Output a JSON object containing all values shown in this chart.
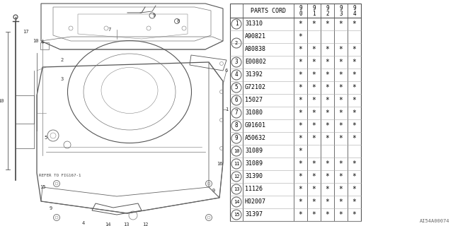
{
  "bg_color": "#ffffff",
  "col_headers": [
    "9\n0",
    "9\n1",
    "9\n2",
    "9\n3",
    "9\n4"
  ],
  "header_label": "PARTS CORD",
  "rows": [
    {
      "num": "1",
      "code": "31310",
      "stars": [
        true,
        true,
        true,
        true,
        true
      ],
      "merged": false
    },
    {
      "num": "2",
      "code": "A90821",
      "stars": [
        true,
        false,
        false,
        false,
        false
      ],
      "merged": true,
      "merge_start": true
    },
    {
      "num": "2",
      "code": "A80838",
      "stars": [
        true,
        true,
        true,
        true,
        true
      ],
      "merged": true,
      "merge_start": false
    },
    {
      "num": "3",
      "code": "E00802",
      "stars": [
        true,
        true,
        true,
        true,
        true
      ],
      "merged": false
    },
    {
      "num": "4",
      "code": "31392",
      "stars": [
        true,
        true,
        true,
        true,
        true
      ],
      "merged": false
    },
    {
      "num": "5",
      "code": "G72102",
      "stars": [
        true,
        true,
        true,
        true,
        true
      ],
      "merged": false
    },
    {
      "num": "6",
      "code": "15027",
      "stars": [
        true,
        true,
        true,
        true,
        true
      ],
      "merged": false
    },
    {
      "num": "7",
      "code": "31080",
      "stars": [
        true,
        true,
        true,
        true,
        true
      ],
      "merged": false
    },
    {
      "num": "8",
      "code": "G91601",
      "stars": [
        true,
        true,
        true,
        true,
        true
      ],
      "merged": false
    },
    {
      "num": "9",
      "code": "A50632",
      "stars": [
        true,
        true,
        true,
        true,
        true
      ],
      "merged": false
    },
    {
      "num": "10",
      "code": "31089",
      "stars": [
        true,
        false,
        false,
        false,
        false
      ],
      "merged": false
    },
    {
      "num": "11",
      "code": "31089",
      "stars": [
        true,
        true,
        true,
        true,
        true
      ],
      "merged": false
    },
    {
      "num": "12",
      "code": "31390",
      "stars": [
        true,
        true,
        true,
        true,
        true
      ],
      "merged": false
    },
    {
      "num": "13",
      "code": "11126",
      "stars": [
        true,
        true,
        true,
        true,
        true
      ],
      "merged": false
    },
    {
      "num": "14",
      "code": "H02007",
      "stars": [
        true,
        true,
        true,
        true,
        true
      ],
      "merged": false
    },
    {
      "num": "15",
      "code": "31397",
      "stars": [
        true,
        true,
        true,
        true,
        true
      ],
      "merged": false
    }
  ],
  "watermark": "AI54A00074",
  "text_color": "#000000",
  "line_color": "#555555"
}
